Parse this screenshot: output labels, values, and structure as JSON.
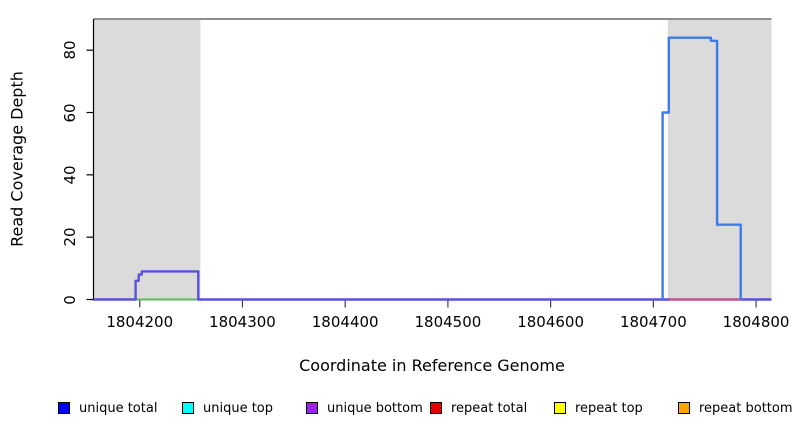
{
  "chart_data": {
    "type": "line",
    "title": "",
    "xlabel": "Coordinate in Reference Genome",
    "ylabel": "Read Coverage Depth",
    "xlim": [
      1804155,
      1804815
    ],
    "ylim": [
      0,
      90
    ],
    "x_ticks": [
      1804200,
      1804300,
      1804400,
      1804500,
      1804600,
      1804700,
      1804800
    ],
    "y_ticks": [
      0,
      20,
      40,
      60,
      80
    ],
    "grid": false,
    "legend_position": "bottom",
    "plot_bg": "#ffffff",
    "top_border_color": "#8f8f8f",
    "axis_color": "#000000",
    "tick_color": "#404040",
    "shaded_region_color": "#dbdbdb",
    "shaded_regions": [
      {
        "name": "left-repeat-region",
        "x_start": 1804155,
        "x_end": 1804259
      },
      {
        "name": "right-repeat-region",
        "x_start": 1804714,
        "x_end": 1804815
      }
    ],
    "series": [
      {
        "name": "repeat top",
        "draw_color": "#ffff00",
        "width": 2,
        "points": []
      },
      {
        "name": "repeat bottom",
        "draw_color": "#ffa500",
        "width": 2,
        "points": []
      },
      {
        "name": "unique top",
        "draw_color": "#5cb85c",
        "width": 2,
        "points": [
          [
            1804196,
            0
          ],
          [
            1804258,
            0
          ]
        ]
      },
      {
        "name": "unique bottom",
        "draw_color": "#5b50d8",
        "width": 2.4,
        "points": [
          [
            1804155,
            0
          ],
          [
            1804196,
            0
          ],
          [
            1804196,
            6
          ],
          [
            1804199,
            6
          ],
          [
            1804199,
            8
          ],
          [
            1804202,
            8
          ],
          [
            1804202,
            9
          ],
          [
            1804257,
            9
          ],
          [
            1804257,
            0
          ],
          [
            1804815,
            0
          ]
        ]
      },
      {
        "name": "repeat total",
        "draw_color": "#dd5468",
        "width": 2,
        "points": [
          [
            1804715,
            0
          ],
          [
            1804785,
            0
          ]
        ]
      },
      {
        "name": "unique total",
        "draw_color": "#3d7be8",
        "width": 2.4,
        "points": [
          [
            1804709,
            0
          ],
          [
            1804709,
            60
          ],
          [
            1804715,
            60
          ],
          [
            1804715,
            84
          ],
          [
            1804756,
            84
          ],
          [
            1804756,
            83
          ],
          [
            1804762,
            83
          ],
          [
            1804762,
            24
          ],
          [
            1804785,
            24
          ],
          [
            1804785,
            0
          ]
        ]
      }
    ],
    "legend": [
      {
        "label": "unique total",
        "color": "#0000ff"
      },
      {
        "label": "unique top",
        "color": "#00ffff"
      },
      {
        "label": "unique bottom",
        "color": "#a020f0"
      },
      {
        "label": "repeat total",
        "color": "#e60000"
      },
      {
        "label": "repeat top",
        "color": "#ffff00"
      },
      {
        "label": "repeat bottom",
        "color": "#ffa500"
      }
    ]
  }
}
